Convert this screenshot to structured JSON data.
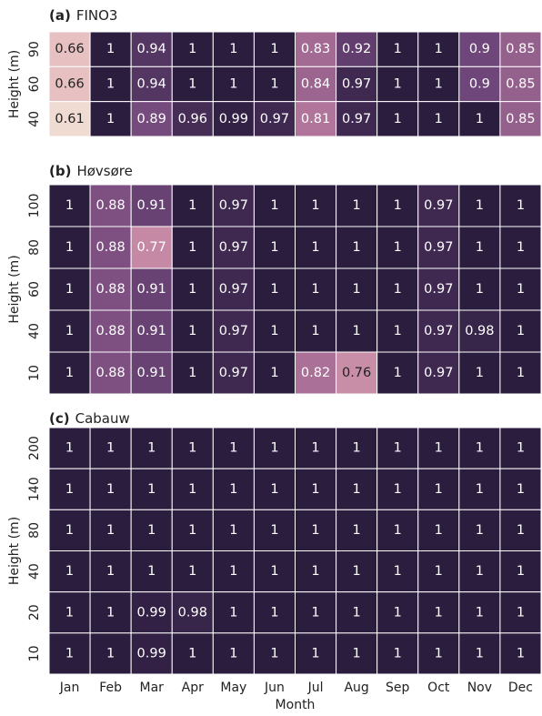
{
  "chart_data": [
    {
      "type": "heatmap",
      "panel_label": "(a)",
      "title": "FINO3",
      "y_label": "Height (m)",
      "y_categories": [
        "90",
        "60",
        "40"
      ],
      "values": [
        [
          0.66,
          1,
          0.94,
          1,
          1,
          1,
          0.83,
          0.92,
          1,
          1,
          0.9,
          0.85
        ],
        [
          0.66,
          1,
          0.94,
          1,
          1,
          1,
          0.84,
          0.97,
          1,
          1,
          0.9,
          0.85
        ],
        [
          0.61,
          1,
          0.89,
          0.96,
          0.99,
          0.97,
          0.81,
          0.97,
          1,
          1,
          1,
          0.85
        ]
      ],
      "clim": [
        0.6,
        1
      ],
      "cmap": [
        "#f2e0d6",
        "#e0adb4",
        "#b97a9f",
        "#6e4679",
        "#2b1d3e"
      ]
    },
    {
      "type": "heatmap",
      "panel_label": "(b)",
      "title": "Høvsøre",
      "y_label": "Height (m)",
      "y_categories": [
        "100",
        "80",
        "60",
        "40",
        "10"
      ],
      "values": [
        [
          1,
          0.88,
          0.91,
          1,
          0.97,
          1,
          1,
          1,
          1,
          0.97,
          1,
          1
        ],
        [
          1,
          0.88,
          0.77,
          1,
          0.97,
          1,
          1,
          1,
          1,
          0.97,
          1,
          1
        ],
        [
          1,
          0.88,
          0.91,
          1,
          0.97,
          1,
          1,
          1,
          1,
          0.97,
          1,
          1
        ],
        [
          1,
          0.88,
          0.91,
          1,
          0.97,
          1,
          1,
          1,
          1,
          0.97,
          0.98,
          1
        ],
        [
          1,
          0.88,
          0.91,
          1,
          0.97,
          1,
          0.82,
          0.76,
          1,
          0.97,
          1,
          1
        ]
      ],
      "clim": [
        0.6,
        1
      ],
      "cmap": [
        "#f2e0d6",
        "#e0adb4",
        "#b97a9f",
        "#6e4679",
        "#2b1d3e"
      ]
    },
    {
      "type": "heatmap",
      "panel_label": "(c)",
      "title": "Cabauw",
      "y_label": "Height (m)",
      "y_categories": [
        "200",
        "140",
        "80",
        "40",
        "20",
        "10"
      ],
      "values": [
        [
          1,
          1,
          1,
          1,
          1,
          1,
          1,
          1,
          1,
          1,
          1,
          1
        ],
        [
          1,
          1,
          1,
          1,
          1,
          1,
          1,
          1,
          1,
          1,
          1,
          1
        ],
        [
          1,
          1,
          1,
          1,
          1,
          1,
          1,
          1,
          1,
          1,
          1,
          1
        ],
        [
          1,
          1,
          1,
          1,
          1,
          1,
          1,
          1,
          1,
          1,
          1,
          1
        ],
        [
          1,
          1,
          0.99,
          0.98,
          1,
          1,
          1,
          1,
          1,
          1,
          1,
          1
        ],
        [
          1,
          1,
          0.99,
          1,
          1,
          1,
          1,
          1,
          1,
          1,
          1,
          1
        ]
      ],
      "clim": [
        0.6,
        1
      ],
      "cmap": [
        "#f2e0d6",
        "#e0adb4",
        "#b97a9f",
        "#6e4679",
        "#2b1d3e"
      ],
      "categories": [
        "Jan",
        "Feb",
        "Mar",
        "Apr",
        "May",
        "Jun",
        "Jul",
        "Aug",
        "Sep",
        "Oct",
        "Nov",
        "Dec"
      ],
      "x_label": "Month"
    }
  ]
}
